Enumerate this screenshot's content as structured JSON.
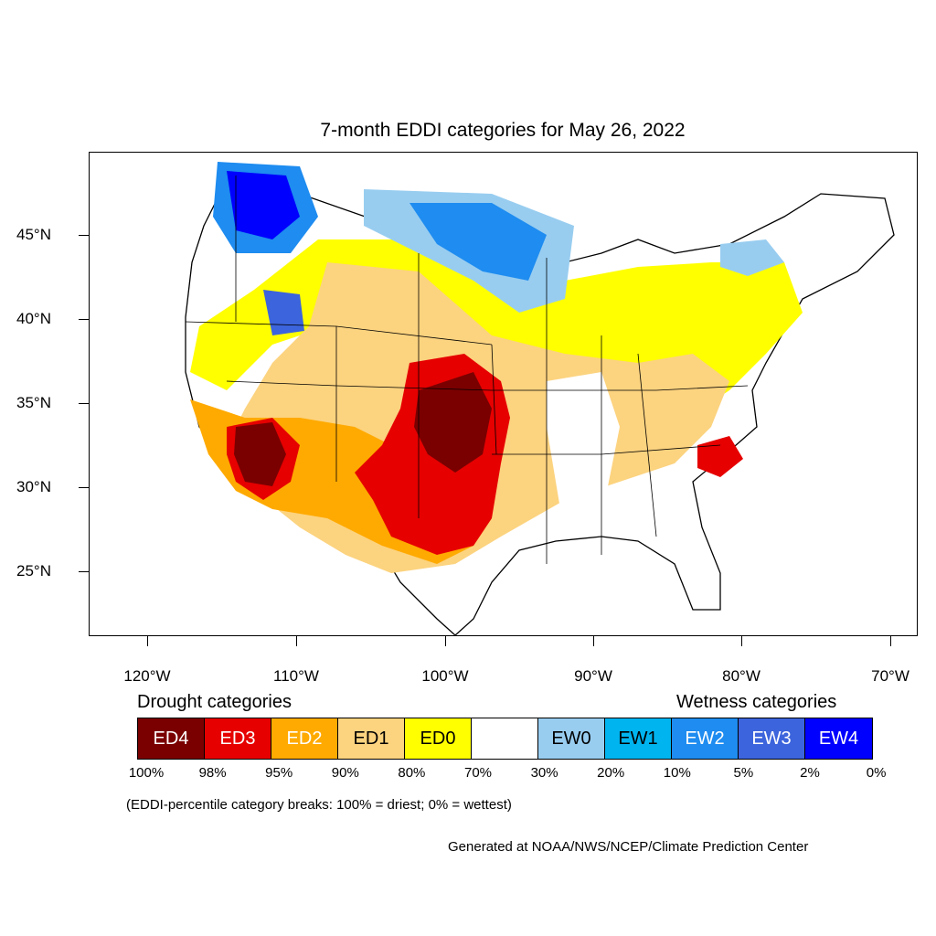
{
  "title": "7-month EDDI categories for May 26, 2022",
  "axes": {
    "lat_labels": [
      "45°N",
      "40°N",
      "35°N",
      "30°N",
      "25°N"
    ],
    "lon_labels": [
      "120°W",
      "110°W",
      "100°W",
      "90°W",
      "80°W",
      "70°W"
    ]
  },
  "legend": {
    "drought_title": "Drought categories",
    "wetness_title": "Wetness categories",
    "categories": [
      {
        "label": "ED4",
        "color": "#7a0000",
        "text_color": "#ffffff"
      },
      {
        "label": "ED3",
        "color": "#e60000",
        "text_color": "#ffffff"
      },
      {
        "label": "ED2",
        "color": "#ffaa00",
        "text_color": "#ffffff"
      },
      {
        "label": "ED1",
        "color": "#fcd37f",
        "text_color": "#000000"
      },
      {
        "label": "ED0",
        "color": "#ffff00",
        "text_color": "#000000"
      },
      {
        "label": "",
        "color": "#ffffff",
        "text_color": "#000000"
      },
      {
        "label": "EW0",
        "color": "#98cdf0",
        "text_color": "#000000"
      },
      {
        "label": "EW1",
        "color": "#00b4f0",
        "text_color": "#000000"
      },
      {
        "label": "EW2",
        "color": "#1e8cf0",
        "text_color": "#ffffff"
      },
      {
        "label": "EW3",
        "color": "#3c64dc",
        "text_color": "#ffffff"
      },
      {
        "label": "EW4",
        "color": "#0000ff",
        "text_color": "#ffffff"
      }
    ],
    "breaks": [
      "100%",
      "98%",
      "95%",
      "90%",
      "80%",
      "70%",
      "30%",
      "20%",
      "10%",
      "5%",
      "2%",
      "0%"
    ]
  },
  "note": "(EDDI-percentile category breaks: 100% = driest; 0% = wettest)",
  "credit": "Generated at NOAA/NWS/NCEP/Climate Prediction Center"
}
